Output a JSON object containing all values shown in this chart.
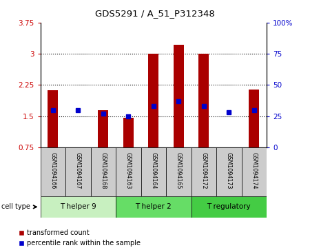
{
  "title": "GDS5291 / A_51_P312348",
  "samples": [
    "GSM1094166",
    "GSM1094167",
    "GSM1094168",
    "GSM1094163",
    "GSM1094164",
    "GSM1094165",
    "GSM1094172",
    "GSM1094173",
    "GSM1094174"
  ],
  "transformed_counts": [
    2.13,
    0.75,
    1.65,
    1.46,
    3.0,
    3.22,
    3.0,
    0.75,
    2.14
  ],
  "percentile_ranks_pct": [
    30,
    30,
    27,
    25,
    33,
    37,
    33,
    28,
    30
  ],
  "bar_bottom": 0.75,
  "ylim_left": [
    0.75,
    3.75
  ],
  "ylim_right": [
    0,
    100
  ],
  "yticks_left": [
    0.75,
    1.5,
    2.25,
    3.0,
    3.75
  ],
  "ytick_labels_left": [
    "0.75",
    "1.5",
    "2.25",
    "3",
    "3.75"
  ],
  "yticks_right": [
    0,
    25,
    50,
    75,
    100
  ],
  "ytick_labels_right": [
    "0",
    "25",
    "50",
    "75",
    "100%"
  ],
  "cell_groups": [
    {
      "label": "T helper 9",
      "start": 0,
      "end": 3,
      "color": "#c8f0c0"
    },
    {
      "label": "T helper 2",
      "start": 3,
      "end": 6,
      "color": "#66dd66"
    },
    {
      "label": "T regulatory",
      "start": 6,
      "end": 9,
      "color": "#44cc44"
    }
  ],
  "bar_color": "#aa0000",
  "percentile_color": "#0000cc",
  "background_color": "#ffffff",
  "tick_label_color_left": "#cc0000",
  "tick_label_color_right": "#0000cc",
  "legend_items": [
    "transformed count",
    "percentile rank within the sample"
  ],
  "cell_type_label": "cell type",
  "sample_box_color": "#cccccc"
}
